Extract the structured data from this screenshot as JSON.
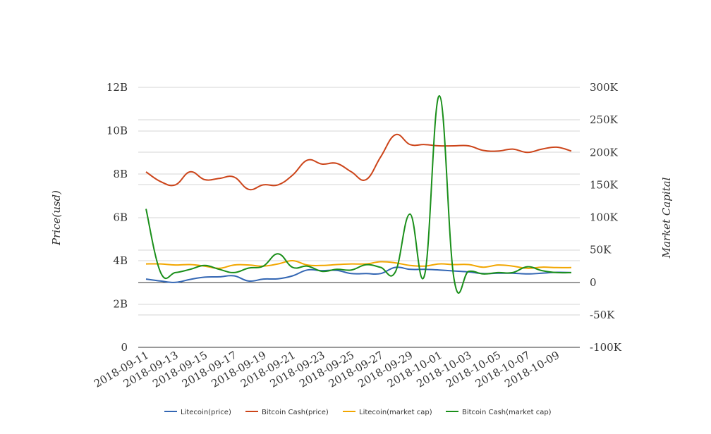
{
  "chart_data": {
    "type": "line",
    "title": "",
    "xlabel": "",
    "ylabel": "Price(usd)",
    "y2label": "Market Capital",
    "x": [
      "2018-09-11",
      "2018-09-12",
      "2018-09-13",
      "2018-09-14",
      "2018-09-15",
      "2018-09-16",
      "2018-09-17",
      "2018-09-18",
      "2018-09-19",
      "2018-09-20",
      "2018-09-21",
      "2018-09-22",
      "2018-09-23",
      "2018-09-24",
      "2018-09-25",
      "2018-09-26",
      "2018-09-27",
      "2018-09-28",
      "2018-09-29",
      "2018-09-30",
      "2018-10-01",
      "2018-10-02",
      "2018-10-03",
      "2018-10-04",
      "2018-10-05",
      "2018-10-06",
      "2018-10-07",
      "2018-10-08",
      "2018-10-09",
      "2018-10-10"
    ],
    "xtick_labels": [
      "2018-09-11",
      "2018-09-13",
      "2018-09-15",
      "2018-09-17",
      "2018-09-19",
      "2018-09-21",
      "2018-09-23",
      "2018-09-25",
      "2018-09-27",
      "2018-09-29",
      "2018-10-01",
      "2018-10-03",
      "2018-10-05",
      "2018-10-07",
      "2018-10-09"
    ],
    "ylim": [
      0,
      12000000000
    ],
    "yticks": [
      0,
      2000000000,
      4000000000,
      6000000000,
      8000000000,
      10000000000,
      12000000000
    ],
    "ytick_labels": [
      "0",
      "2B",
      "4B",
      "6B",
      "8B",
      "10B",
      "12B"
    ],
    "y2lim": [
      -100000,
      300000
    ],
    "y2ticks": [
      -100000,
      -50000,
      0,
      50000,
      100000,
      150000,
      200000,
      250000,
      300000
    ],
    "y2tick_labels": [
      "-100K",
      "-50K",
      "0",
      "50K",
      "100K",
      "150K",
      "200K",
      "250K",
      "300K"
    ],
    "grid": true,
    "legend_position": "bottom",
    "series": [
      {
        "name": "Litecoin(price)",
        "axis": "right",
        "color": "#3366b3",
        "values": [
          5000,
          2000,
          0,
          4500,
          8000,
          8500,
          10000,
          2000,
          5000,
          5500,
          10000,
          19000,
          18000,
          18500,
          13500,
          13500,
          13500,
          23000,
          20000,
          20000,
          19000,
          17500,
          16000,
          13500,
          14000,
          14000,
          13000,
          14000,
          15500,
          15000
        ]
      },
      {
        "name": "Bitcoin Cash(price)",
        "axis": "right",
        "color": "#cc4419",
        "values": [
          170000,
          155000,
          150000,
          170000,
          158000,
          160000,
          162000,
          143000,
          150000,
          150000,
          165000,
          188000,
          182000,
          183000,
          170000,
          158000,
          193000,
          227000,
          212000,
          212000,
          210000,
          210000,
          210000,
          203000,
          202000,
          205000,
          200000,
          205000,
          208000,
          202000
        ]
      },
      {
        "name": "Litecoin(market cap)",
        "axis": "left",
        "color": "#f2a600",
        "values": [
          3850000000,
          3850000000,
          3800000000,
          3820000000,
          3750000000,
          3650000000,
          3800000000,
          3800000000,
          3750000000,
          3850000000,
          4000000000,
          3800000000,
          3780000000,
          3820000000,
          3850000000,
          3850000000,
          3950000000,
          3900000000,
          3780000000,
          3750000000,
          3850000000,
          3820000000,
          3820000000,
          3700000000,
          3800000000,
          3750000000,
          3650000000,
          3700000000,
          3680000000,
          3680000000
        ]
      },
      {
        "name": "Bitcoin Cash(market cap)",
        "axis": "right",
        "color": "#1a8f1a",
        "values": [
          113000,
          15000,
          15000,
          20000,
          26000,
          20000,
          15000,
          22000,
          25000,
          44000,
          23000,
          25000,
          17000,
          20000,
          19000,
          27000,
          23000,
          16000,
          105000,
          12000,
          287000,
          5000,
          17000,
          13000,
          15000,
          15000,
          24000,
          18000,
          15000,
          15000
        ]
      }
    ]
  }
}
